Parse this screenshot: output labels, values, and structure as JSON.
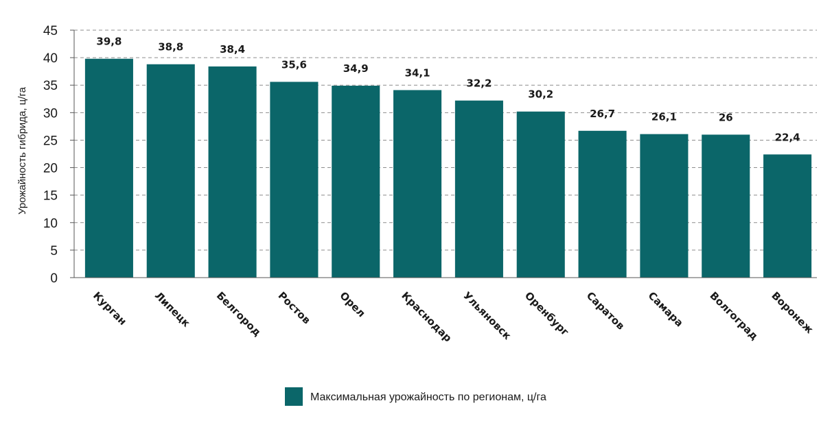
{
  "chart_data": {
    "type": "bar",
    "title": "",
    "xlabel": "",
    "ylabel": "Урожайность гибрида, ц/га",
    "ylim": [
      0,
      45
    ],
    "ytick_step": 5,
    "yticks": [
      "0",
      "5",
      "10",
      "15",
      "20",
      "25",
      "30",
      "35",
      "40",
      "45"
    ],
    "grid": true,
    "legend_position": "bottom-center",
    "categories": [
      "Курган",
      "Липецк",
      "Белгород",
      "Ростов",
      "Орел",
      "Краснодар",
      "Ульяновск",
      "Оренбург",
      "Саратов",
      "Самара",
      "Волгоград",
      "Воронеж"
    ],
    "series": [
      {
        "name": "Максимальная урожайность по регионам, ц/га",
        "values": [
          39.8,
          38.8,
          38.4,
          35.6,
          34.9,
          34.1,
          32.2,
          30.2,
          26.7,
          26.1,
          26,
          22.4
        ],
        "labels": [
          "39,8",
          "38,8",
          "38,4",
          "35,6",
          "34,9",
          "34,1",
          "32,2",
          "30,2",
          "26,7",
          "26,1",
          "26",
          "22,4"
        ],
        "color": "#0b6669"
      }
    ]
  }
}
